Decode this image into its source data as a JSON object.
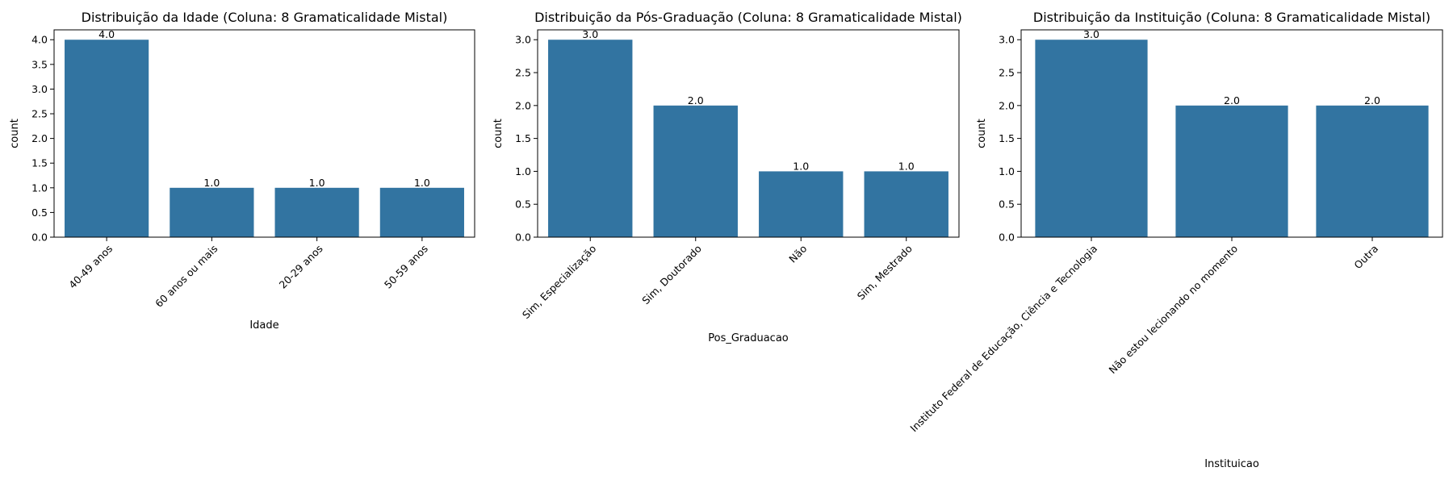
{
  "figure": {
    "background": "#ffffff",
    "bar_color": "#3274a1"
  },
  "chart_data": [
    {
      "type": "bar",
      "title": "Distribuição da Idade (Coluna: 8 Gramaticalidade Mistal)",
      "xlabel": "Idade",
      "ylabel": "count",
      "categories": [
        "40-49 anos",
        "60 anos ou mais",
        "20-29 anos",
        "50-59 anos"
      ],
      "values": [
        4.0,
        1.0,
        1.0,
        1.0
      ],
      "value_labels": [
        "4.0",
        "1.0",
        "1.0",
        "1.0"
      ],
      "yticks": [
        "0.0",
        "0.5",
        "1.0",
        "1.5",
        "2.0",
        "2.5",
        "3.0",
        "3.5",
        "4.0"
      ],
      "ylim": [
        0,
        4.2
      ],
      "grid": false
    },
    {
      "type": "bar",
      "title": "Distribuição da Pós-Graduação (Coluna: 8 Gramaticalidade Mistal)",
      "xlabel": "Pos_Graduacao",
      "ylabel": "count",
      "categories": [
        "Sim, Especialização",
        "Sim, Doutorado",
        "Não",
        "Sim, Mestrado"
      ],
      "values": [
        3.0,
        2.0,
        1.0,
        1.0
      ],
      "value_labels": [
        "3.0",
        "2.0",
        "1.0",
        "1.0"
      ],
      "yticks": [
        "0.0",
        "0.5",
        "1.0",
        "1.5",
        "2.0",
        "2.5",
        "3.0"
      ],
      "ylim": [
        0,
        3.15
      ],
      "grid": false
    },
    {
      "type": "bar",
      "title": "Distribuição da Instituição (Coluna: 8 Gramaticalidade Mistal)",
      "xlabel": "Instituicao",
      "ylabel": "count",
      "categories": [
        "Instituto Federal de Educação, Ciência e Tecnologia",
        "Não estou lecionando no momento",
        "Outra"
      ],
      "values": [
        3.0,
        2.0,
        2.0
      ],
      "value_labels": [
        "3.0",
        "2.0",
        "2.0"
      ],
      "yticks": [
        "0.0",
        "0.5",
        "1.0",
        "1.5",
        "2.0",
        "2.5",
        "3.0"
      ],
      "ylim": [
        0,
        3.15
      ],
      "grid": false
    }
  ]
}
